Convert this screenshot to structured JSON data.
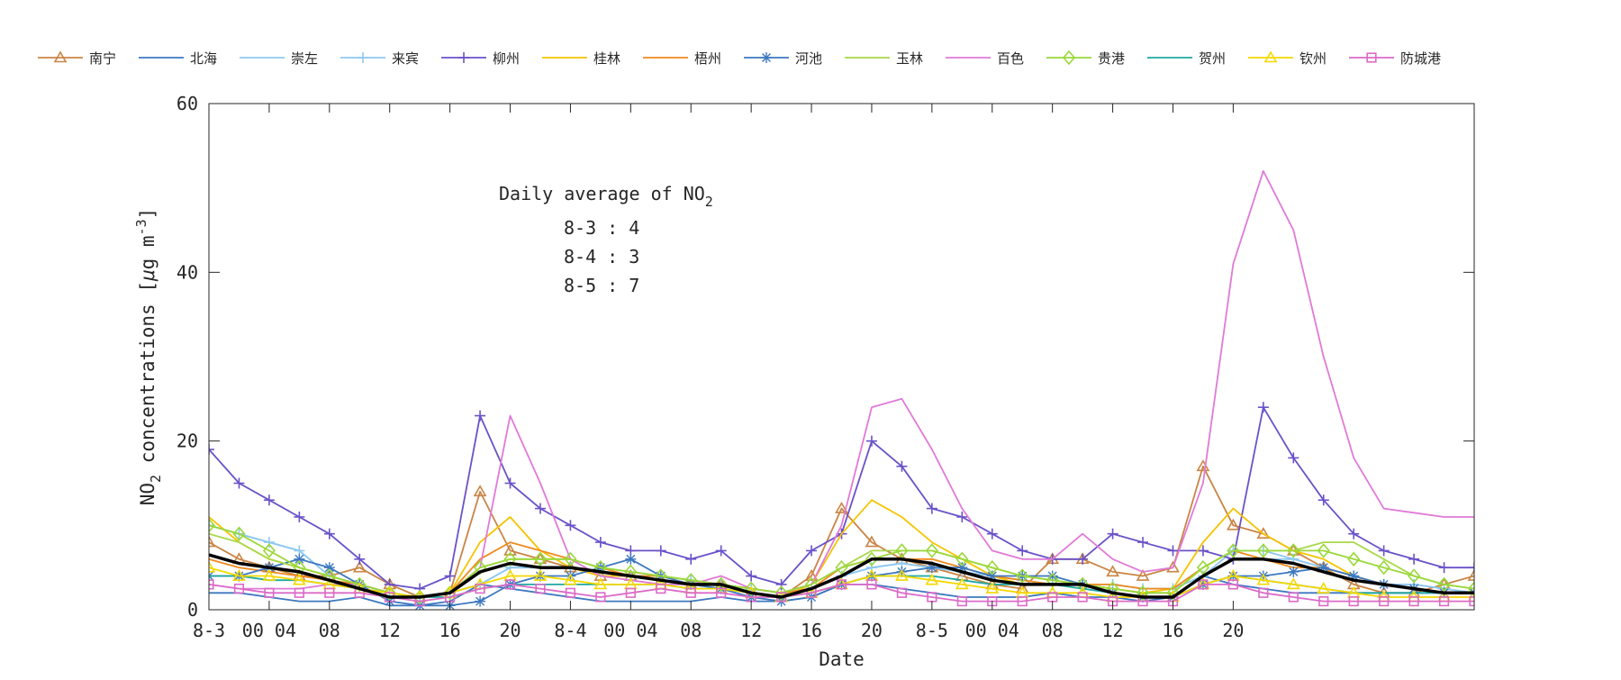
{
  "chart_data": {
    "type": "line",
    "xlabel": "Date",
    "ylabel": "NO2 concentrations [μg m-3]",
    "ylabel_parts": {
      "pre": "NO",
      "sub": "2",
      "mid": " concentrations [",
      "mu": "μ",
      "mid2": "g m",
      "sup": "-3",
      "post": "]"
    },
    "x_unit": "hour (local), 2-hourly samples starting 8-3 00",
    "xlim": [
      0,
      84
    ],
    "ylim": [
      0,
      60
    ],
    "yticks": [
      0,
      20,
      40,
      60
    ],
    "xticks": [
      {
        "x": 0,
        "label": "8-3"
      },
      {
        "x": 4,
        "label": "00 04"
      },
      {
        "x": 8,
        "label": "08"
      },
      {
        "x": 12,
        "label": "12"
      },
      {
        "x": 16,
        "label": "16"
      },
      {
        "x": 20,
        "label": "20"
      },
      {
        "x": 24,
        "label": "8-4"
      },
      {
        "x": 28,
        "label": "00 04"
      },
      {
        "x": 32,
        "label": "08"
      },
      {
        "x": 36,
        "label": "12"
      },
      {
        "x": 40,
        "label": "16"
      },
      {
        "x": 44,
        "label": "20"
      },
      {
        "x": 48,
        "label": "8-5"
      },
      {
        "x": 52,
        "label": "00 04"
      },
      {
        "x": 56,
        "label": "08"
      },
      {
        "x": 60,
        "label": "12"
      },
      {
        "x": 64,
        "label": "16"
      },
      {
        "x": 68,
        "label": "20"
      }
    ],
    "grid": false,
    "legend_position": "top",
    "annotation": {
      "title_pre": "Daily average of NO",
      "title_sub": "2",
      "lines": [
        "8-3 : 4",
        "8-4 : 3",
        "8-5 : 7"
      ]
    },
    "x": [
      0,
      2,
      4,
      6,
      8,
      10,
      12,
      14,
      16,
      18,
      20,
      22,
      24,
      26,
      28,
      30,
      32,
      34,
      36,
      38,
      40,
      42,
      44,
      46,
      48,
      50,
      52,
      54,
      56,
      58,
      60,
      62,
      64,
      66,
      68,
      70,
      72,
      74,
      76,
      78,
      80,
      82,
      84
    ],
    "series": [
      {
        "name": "南宁",
        "color": "#c98545",
        "marker": "triangle",
        "values": [
          8,
          6,
          5,
          4,
          4,
          5,
          3,
          1.5,
          2,
          14,
          7,
          6,
          5,
          4,
          4,
          3.5,
          3,
          3,
          2,
          1.5,
          4,
          12,
          8,
          6,
          5,
          4,
          3,
          2.5,
          6,
          6,
          4.5,
          4,
          5,
          17,
          10,
          9,
          7,
          5,
          3,
          2,
          2,
          3,
          4
        ]
      },
      {
        "name": "北海",
        "color": "#3d78bf",
        "marker": "none",
        "values": [
          2,
          2,
          1.5,
          1,
          1,
          1.5,
          0.5,
          0.5,
          1,
          3,
          2.5,
          2,
          1.5,
          1,
          1,
          1,
          1,
          1.5,
          1,
          1,
          1.5,
          3,
          3,
          2.5,
          2,
          1.5,
          1.5,
          1.5,
          2,
          1.5,
          1.5,
          1,
          1.5,
          4,
          3,
          2.5,
          2,
          2,
          2,
          2,
          2,
          2,
          2
        ]
      },
      {
        "name": "崇左",
        "color": "#8ec8f0",
        "marker": "none",
        "values": [
          10,
          9,
          8,
          7,
          4,
          3,
          2,
          1.5,
          2,
          3,
          5,
          5,
          5,
          4.5,
          4,
          4,
          3.5,
          3,
          2.5,
          2,
          2.5,
          4,
          5,
          5.5,
          5,
          4.5,
          4,
          3.5,
          3,
          3,
          3,
          2.5,
          2.5,
          4,
          6,
          6,
          6,
          5,
          4,
          3,
          3,
          2.5,
          2
        ]
      },
      {
        "name": "来宾",
        "color": "#8ec8f0",
        "marker": "plus",
        "values": [
          10,
          9,
          8,
          7,
          4,
          3,
          2,
          1.5,
          2,
          3,
          5,
          5,
          5,
          4.5,
          4,
          4,
          3.5,
          3,
          2.5,
          2,
          2.5,
          4,
          5,
          5.5,
          5,
          4.5,
          4,
          3.5,
          3,
          3,
          3,
          2.5,
          2.5,
          4,
          7,
          7,
          6,
          5,
          4,
          3,
          3,
          2.5,
          2
        ]
      },
      {
        "name": "柳州",
        "color": "#6a52c8",
        "marker": "plus",
        "values": [
          19,
          15,
          13,
          11,
          9,
          6,
          3,
          2.5,
          4,
          23,
          15,
          12,
          10,
          8,
          7,
          7,
          6,
          7,
          4,
          3,
          7,
          9,
          20,
          17,
          12,
          11,
          9,
          7,
          6,
          6,
          9,
          8,
          7,
          7,
          6,
          24,
          18,
          13,
          9,
          7,
          6,
          5,
          5
        ]
      },
      {
        "name": "桂林",
        "color": "#f5c400",
        "marker": "none",
        "values": [
          11,
          8,
          6,
          5,
          4,
          3,
          2,
          1.5,
          2,
          8,
          11,
          7,
          5,
          4,
          4,
          3.5,
          3,
          3,
          2,
          1.5,
          3,
          9,
          13,
          11,
          8,
          6,
          4,
          3,
          3,
          3,
          2.5,
          2,
          2.5,
          8,
          12,
          9,
          7,
          6,
          4,
          3,
          2.5,
          2,
          2
        ]
      },
      {
        "name": "梧州",
        "color": "#ef8a1f",
        "marker": "none",
        "values": [
          6,
          5,
          4.5,
          4,
          3.5,
          3,
          2,
          1.5,
          2,
          6,
          8,
          7,
          6,
          5,
          4,
          4,
          3.5,
          3,
          2.5,
          2,
          2.5,
          5,
          6,
          6,
          6,
          5,
          4,
          3.5,
          3,
          3,
          3,
          2.5,
          2.5,
          5,
          7,
          6,
          5,
          5,
          4,
          3,
          2.5,
          2,
          2
        ]
      },
      {
        "name": "河池",
        "color": "#3d78bf",
        "marker": "asterisk",
        "values": [
          4,
          4,
          5,
          6,
          5,
          3,
          1,
          0.5,
          0.5,
          1,
          3,
          4,
          4,
          5,
          6,
          4,
          3,
          2.5,
          1.5,
          1,
          1.5,
          3,
          4,
          4.5,
          5,
          5,
          4,
          4,
          4,
          3,
          2,
          1.5,
          1.5,
          3,
          4,
          4,
          4.5,
          5,
          4,
          3,
          2.5,
          2,
          2
        ]
      },
      {
        "name": "玉林",
        "color": "#a8d84a",
        "marker": "none",
        "values": [
          9,
          8,
          6,
          5,
          4,
          3,
          2,
          1.5,
          2,
          5,
          6,
          6,
          6,
          5,
          4.5,
          4,
          3.5,
          3,
          2.5,
          2,
          3,
          5,
          7,
          7,
          7,
          6,
          5,
          4,
          3.5,
          3,
          2.5,
          2,
          2,
          5,
          7,
          7,
          7,
          8,
          8,
          6,
          4,
          3,
          2.5
        ]
      },
      {
        "name": "百色",
        "color": "#e07ad8",
        "marker": "none",
        "values": [
          3,
          2.5,
          2.5,
          2.5,
          3,
          3,
          2,
          1.5,
          2,
          5,
          23,
          15,
          6,
          4,
          3.5,
          3,
          3,
          4,
          2.5,
          2,
          3,
          10,
          24,
          25,
          19,
          12,
          7,
          6,
          6,
          9,
          6,
          4.5,
          5,
          15,
          41,
          52,
          45,
          30,
          18,
          12,
          11.5,
          11,
          11
        ]
      },
      {
        "name": "贵港",
        "color": "#9ad83a",
        "marker": "diamond",
        "values": [
          10,
          9,
          7,
          5,
          4,
          3,
          2,
          1.5,
          2,
          5,
          6,
          6,
          6,
          5,
          4.5,
          4,
          3.5,
          3,
          2.5,
          2,
          3,
          5,
          6,
          7,
          7,
          6,
          5,
          4,
          3.5,
          3,
          2.5,
          2,
          2,
          5,
          7,
          7,
          7,
          7,
          6,
          5,
          4,
          3,
          2.5
        ]
      },
      {
        "name": "贺州",
        "color": "#1ea8a0",
        "marker": "none",
        "values": [
          4,
          4,
          3.5,
          3.5,
          3,
          2.5,
          2,
          1.5,
          1.5,
          2.5,
          3,
          3,
          3,
          3,
          3,
          3,
          2.5,
          2.5,
          2,
          1.5,
          2,
          3,
          4,
          4,
          4,
          3.5,
          3,
          3,
          3,
          2.5,
          2,
          1.5,
          1.5,
          3,
          4,
          3.5,
          3,
          2.5,
          2,
          2,
          2,
          2,
          2
        ]
      },
      {
        "name": "钦州",
        "color": "#f5d800",
        "marker": "triangle",
        "values": [
          5,
          4,
          4,
          3.5,
          3,
          2.5,
          2,
          1.5,
          2,
          3,
          4,
          4,
          3.5,
          3,
          3,
          3,
          2.5,
          2.5,
          2,
          1.5,
          2,
          3,
          4,
          4,
          3.5,
          3,
          2.5,
          2,
          2,
          2,
          1.5,
          1.5,
          1.5,
          3,
          4,
          3.5,
          3,
          2.5,
          2,
          1.5,
          1.5,
          1.5,
          1.5
        ]
      },
      {
        "name": "防城港",
        "color": "#dc6ac8",
        "marker": "square",
        "values": [
          3,
          2.5,
          2,
          2,
          2,
          2,
          1.5,
          1,
          1.5,
          2.5,
          3,
          2.5,
          2,
          1.5,
          2,
          2.5,
          2,
          2,
          1.5,
          1.5,
          2,
          3,
          3,
          2,
          1.5,
          1,
          1,
          1,
          1.5,
          1.5,
          1,
          1,
          1,
          3,
          3,
          2,
          1.5,
          1,
          1,
          1,
          1,
          1,
          1
        ]
      },
      {
        "name": "",
        "color": "#000000",
        "marker": "none",
        "bold": true,
        "values": [
          6.5,
          5.5,
          5,
          4.5,
          3.5,
          2.5,
          1.5,
          1.5,
          2,
          4.5,
          5.5,
          5,
          5,
          4.5,
          4,
          3.5,
          3,
          3,
          2,
          1.5,
          2.5,
          4,
          6,
          6,
          5.5,
          4.5,
          3.5,
          3,
          3,
          3,
          2,
          1.5,
          1.5,
          4,
          6,
          6,
          5.5,
          4.5,
          3.5,
          3,
          2.5,
          2,
          2
        ]
      }
    ]
  }
}
